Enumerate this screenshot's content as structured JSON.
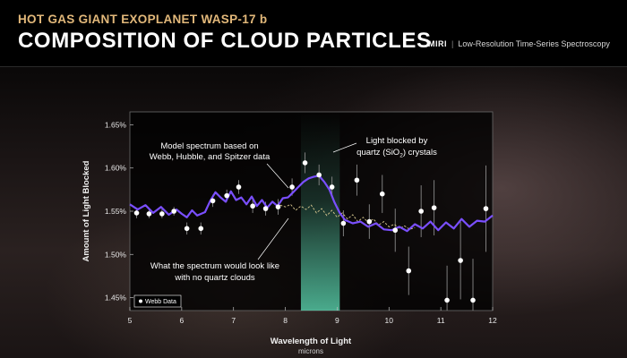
{
  "header": {
    "subtitle": "HOT GAS GIANT EXOPLANET WASP-17 b",
    "title": "COMPOSITION OF CLOUD PARTICLES",
    "instrument": "MIRI",
    "mode": "Low-Resolution Time-Series Spectroscopy"
  },
  "annotations": {
    "model_line1": "Model spectrum based on",
    "model_line2": "Webb, Hubble, and Spitzer data",
    "quartz_line1": "Light blocked by",
    "quartz_line2_prefix": "quartz (SiO",
    "quartz_sub": "2",
    "quartz_line2_suffix": ") crystals",
    "noquartz_line1": "What the spectrum would look like",
    "noquartz_line2": "with no quartz clouds"
  },
  "colors": {
    "model": "#7a4fff",
    "no_quartz": "#d8c890",
    "highlight": "#5fe0b8",
    "points": "#ffffff"
  },
  "chart_data": {
    "type": "line",
    "xlabel": "Wavelength of Light",
    "xunit": "microns",
    "ylabel": "Amount of Light Blocked",
    "xlim": [
      5,
      12
    ],
    "ylim": [
      1.435,
      1.665
    ],
    "xticks": [
      "5",
      "6",
      "7",
      "8",
      "9",
      "10",
      "11",
      "12"
    ],
    "yticks": [
      "1.45%",
      "1.50%",
      "1.55%",
      "1.60%",
      "1.65%"
    ],
    "highlight_band": [
      8.3,
      9.05
    ],
    "legend": "Webb Data",
    "series": [
      {
        "name": "Webb Data",
        "kind": "points",
        "x": [
          5.13,
          5.37,
          5.62,
          5.85,
          6.1,
          6.37,
          6.6,
          6.87,
          7.1,
          7.37,
          7.62,
          7.86,
          8.13,
          8.38,
          8.65,
          8.9,
          9.12,
          9.38,
          9.62,
          9.87,
          10.12,
          10.38,
          10.62,
          10.87,
          11.12,
          11.38,
          11.62,
          11.87
        ],
        "y": [
          1.548,
          1.547,
          1.547,
          1.55,
          1.53,
          1.53,
          1.562,
          1.568,
          1.578,
          1.556,
          1.553,
          1.555,
          1.578,
          1.606,
          1.592,
          1.578,
          1.536,
          1.586,
          1.538,
          1.57,
          1.528,
          1.481,
          1.55,
          1.554,
          1.447,
          1.493,
          1.447,
          1.553
        ],
        "err": [
          0.006,
          0.005,
          0.005,
          0.005,
          0.007,
          0.007,
          0.007,
          0.007,
          0.008,
          0.008,
          0.008,
          0.009,
          0.01,
          0.012,
          0.012,
          0.012,
          0.015,
          0.018,
          0.02,
          0.022,
          0.025,
          0.028,
          0.03,
          0.032,
          0.04,
          0.045,
          0.048,
          0.05
        ]
      },
      {
        "name": "Model spectrum",
        "kind": "line",
        "x": [
          5.0,
          5.15,
          5.3,
          5.45,
          5.6,
          5.75,
          5.9,
          6.0,
          6.1,
          6.2,
          6.3,
          6.45,
          6.55,
          6.65,
          6.75,
          6.85,
          6.95,
          7.05,
          7.15,
          7.25,
          7.35,
          7.45,
          7.55,
          7.65,
          7.75,
          7.85,
          7.95,
          8.05,
          8.15,
          8.25,
          8.35,
          8.45,
          8.55,
          8.65,
          8.75,
          8.85,
          8.95,
          9.05,
          9.15,
          9.3,
          9.45,
          9.6,
          9.75,
          9.9,
          10.05,
          10.2,
          10.35,
          10.5,
          10.65,
          10.8,
          10.95,
          11.1,
          11.25,
          11.4,
          11.55,
          11.7,
          11.85,
          12.0
        ],
        "y": [
          1.558,
          1.552,
          1.557,
          1.548,
          1.555,
          1.546,
          1.552,
          1.547,
          1.543,
          1.551,
          1.545,
          1.549,
          1.562,
          1.572,
          1.566,
          1.561,
          1.573,
          1.563,
          1.566,
          1.558,
          1.567,
          1.556,
          1.563,
          1.554,
          1.561,
          1.556,
          1.565,
          1.566,
          1.572,
          1.578,
          1.584,
          1.588,
          1.59,
          1.591,
          1.584,
          1.575,
          1.56,
          1.548,
          1.54,
          1.536,
          1.538,
          1.532,
          1.536,
          1.529,
          1.528,
          1.532,
          1.527,
          1.535,
          1.53,
          1.538,
          1.528,
          1.537,
          1.53,
          1.541,
          1.532,
          1.539,
          1.538,
          1.545
        ]
      },
      {
        "name": "No quartz clouds",
        "kind": "line",
        "x": [
          7.9,
          8.0,
          8.1,
          8.2,
          8.3,
          8.4,
          8.5,
          8.6,
          8.7,
          8.8,
          8.9,
          9.0,
          9.1,
          9.2,
          9.3,
          9.4,
          9.5,
          9.6,
          9.7,
          9.8,
          9.9,
          10.0,
          10.1,
          10.2,
          10.3,
          10.4,
          10.5
        ],
        "y": [
          1.557,
          1.555,
          1.558,
          1.551,
          1.556,
          1.552,
          1.557,
          1.548,
          1.553,
          1.545,
          1.551,
          1.543,
          1.548,
          1.541,
          1.546,
          1.538,
          1.543,
          1.537,
          1.541,
          1.534,
          1.538,
          1.532,
          1.535,
          1.53,
          1.533,
          1.529,
          1.531
        ]
      }
    ]
  }
}
